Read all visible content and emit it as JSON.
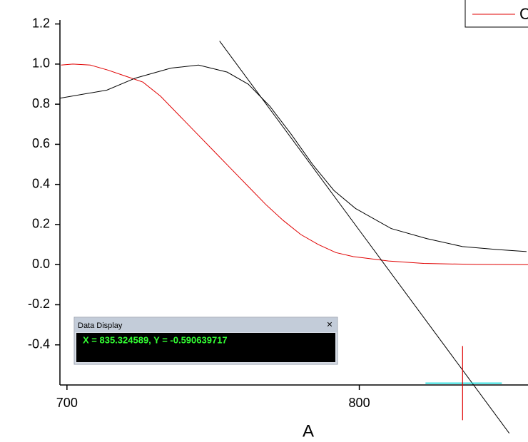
{
  "chart_data": {
    "type": "line",
    "x_label": "A",
    "xlim": [
      697.6,
      857.7
    ],
    "ylim": [
      -0.6,
      1.22
    ],
    "xticks": [
      700,
      800
    ],
    "yticks": [
      1.2,
      1.0,
      0.8,
      0.6,
      0.4,
      0.2,
      0.0,
      -0.2,
      -0.4
    ],
    "ytick_labels": [
      "1.2",
      "1.0",
      "0.8",
      "0.6",
      "0.4",
      "0.2",
      "0.0",
      "-0.2",
      "-0.4"
    ],
    "legend": "top-right",
    "series": [
      {
        "name": "C",
        "color": "#e00000",
        "x": [
          698,
          702,
          708,
          714,
          720,
          726,
          732,
          738,
          744,
          750,
          756,
          762,
          768,
          774,
          780,
          786,
          792,
          798,
          810,
          822,
          840,
          858
        ],
        "values": [
          0.995,
          1.0,
          0.995,
          0.97,
          0.94,
          0.91,
          0.84,
          0.75,
          0.66,
          0.57,
          0.48,
          0.39,
          0.3,
          0.22,
          0.15,
          0.1,
          0.06,
          0.04,
          0.018,
          0.006,
          0.001,
          0.0
        ]
      },
      {
        "color": "#000000",
        "x": [
          697.6,
          713.6,
          723.4,
          735.6,
          745,
          754.8,
          762,
          769.4,
          776.7,
          784,
          791.3,
          798.7,
          810.9,
          823,
          835.3,
          847.4,
          857.2
        ],
        "values": [
          0.83,
          0.87,
          0.93,
          0.98,
          0.995,
          0.96,
          0.9,
          0.79,
          0.65,
          0.5,
          0.37,
          0.28,
          0.18,
          0.13,
          0.09,
          0.075,
          0.065
        ]
      },
      {
        "color": "#000000",
        "x": [
          752.2,
          851.3
        ],
        "values": [
          1.115,
          -0.841
        ]
      }
    ],
    "cursor": {
      "x": 835.324589,
      "y": -0.590639717,
      "color": "#e00000"
    }
  },
  "data_display": {
    "title": "Data Display",
    "close": "×",
    "text": "X = 835.324589, Y = -0.590639717"
  }
}
